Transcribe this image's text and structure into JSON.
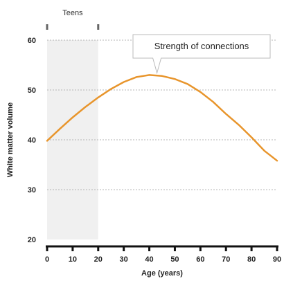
{
  "chart_data": {
    "type": "line",
    "xlabel": "Age (years)",
    "ylabel": "White matter volume",
    "xlim": [
      0,
      90
    ],
    "ylim": [
      20,
      60
    ],
    "x_ticks": [
      "0",
      "10",
      "20",
      "30",
      "40",
      "50",
      "60",
      "70",
      "80",
      "90"
    ],
    "y_ticks": [
      "60",
      "50",
      "40",
      "30",
      "20"
    ],
    "grid": true,
    "highlight_band": {
      "label": "Teens",
      "x_range": [
        0,
        20
      ]
    },
    "annotation": {
      "text": "Strength of connections",
      "x": 43,
      "y": 53
    },
    "series": [
      {
        "color": "#e8952c",
        "x": [
          0,
          5,
          10,
          15,
          20,
          25,
          30,
          35,
          40,
          45,
          50,
          55,
          60,
          65,
          70,
          75,
          80,
          85,
          90
        ],
        "values": [
          39.8,
          42.2,
          44.5,
          46.6,
          48.5,
          50.2,
          51.6,
          52.6,
          53.0,
          52.8,
          52.2,
          51.2,
          49.6,
          47.6,
          45.2,
          43.0,
          40.5,
          37.8,
          35.8
        ]
      }
    ]
  }
}
